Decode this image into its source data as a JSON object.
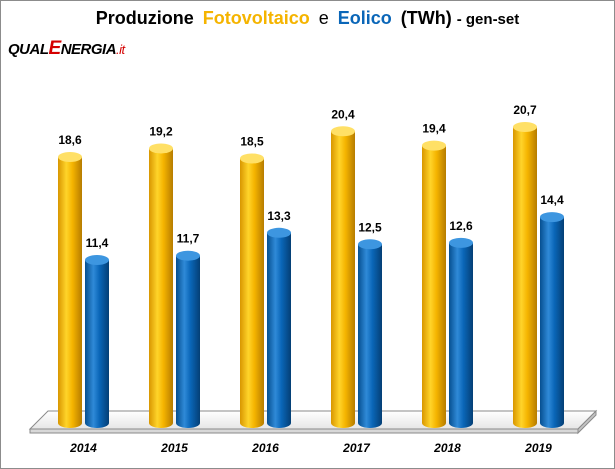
{
  "title": {
    "part1": "Produzione",
    "series1": "Fotovoltaico",
    "connector": "e",
    "series2": "Eolico",
    "unit": "(TWh)",
    "suffix": "- gen-set"
  },
  "logo": {
    "qual": "QUAL",
    "e": "E",
    "nergia": "NERGIA",
    "it": ".it"
  },
  "colors": {
    "fotovoltaico": "#f5b400",
    "eolico": "#0a66b8",
    "logo_accent": "#d40000"
  },
  "chart_data": {
    "type": "bar",
    "title": "Produzione Fotovoltaico e Eolico (TWh) - gen-set",
    "categories": [
      "2014",
      "2015",
      "2016",
      "2017",
      "2018",
      "2019"
    ],
    "series": [
      {
        "name": "Fotovoltaico",
        "values": [
          18.6,
          19.2,
          18.5,
          20.4,
          19.4,
          20.7
        ],
        "labels": [
          "18,6",
          "19,2",
          "18,5",
          "20,4",
          "19,4",
          "20,7"
        ]
      },
      {
        "name": "Eolico",
        "values": [
          11.4,
          11.7,
          13.3,
          12.5,
          12.6,
          14.4
        ],
        "labels": [
          "11,4",
          "11,7",
          "13,3",
          "12,5",
          "12,6",
          "14,4"
        ]
      }
    ],
    "ylim": [
      0,
      21
    ],
    "grid": false,
    "legend": "none",
    "style": "3d-cylinder"
  }
}
